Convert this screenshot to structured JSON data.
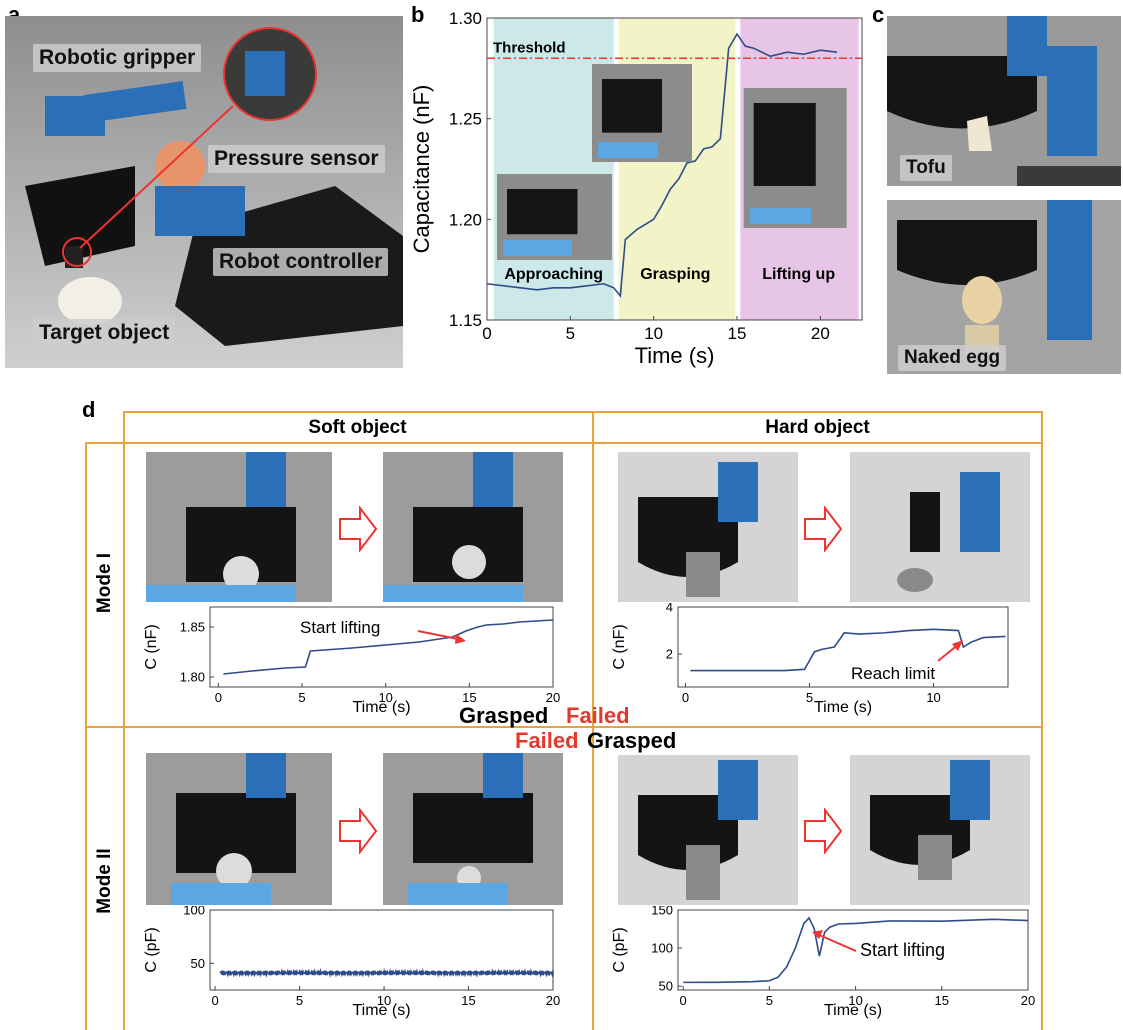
{
  "panels": {
    "a": {
      "letter": "a",
      "labels": {
        "gripper": "Robotic gripper",
        "sensor": "Pressure sensor",
        "controller": "Robot controller",
        "target": "Target object"
      }
    },
    "b": {
      "letter": "b",
      "threshold_label": "Threshold",
      "phases": [
        "Approaching",
        "Grasping",
        "Lifting up"
      ],
      "phase_colors": [
        "#cce8e8",
        "#f3f3c8",
        "#e7c5e7"
      ]
    },
    "c": {
      "letter": "c",
      "labels": {
        "tofu": "Tofu",
        "egg": "Naked egg"
      }
    },
    "d": {
      "letter": "d",
      "columns": [
        "Soft object",
        "Hard object"
      ],
      "rows": [
        "Mode I",
        "Mode II"
      ],
      "results": {
        "mode1": [
          "Grasped",
          "Failed"
        ],
        "mode2": [
          "Failed",
          "Grasped"
        ]
      },
      "annotations": {
        "start_lifting": "Start lifting",
        "reach_limit": "Reach limit"
      },
      "accent_color": "#e8a33d",
      "fail_color": "#e03a2e"
    }
  },
  "chart_data": [
    {
      "id": "b",
      "type": "line",
      "xlabel": "Time (s)",
      "ylabel": "Capacitance (nF)",
      "xlim": [
        0,
        22.5
      ],
      "ylim": [
        1.15,
        1.3
      ],
      "xticks": [
        0,
        5,
        10,
        15,
        20
      ],
      "yticks": [
        1.15,
        1.2,
        1.25,
        1.3
      ],
      "xtick_labels": [
        "0",
        "5",
        "10",
        "15",
        "20"
      ],
      "ytick_labels": [
        "1.15",
        "1.20",
        "1.25",
        "1.30"
      ],
      "threshold": 1.28,
      "color": "#2e4b8a",
      "x": [
        0,
        1,
        2,
        3,
        4,
        5,
        6,
        7,
        7.6,
        8,
        8.3,
        9,
        10,
        10.5,
        11,
        11.5,
        12,
        12.5,
        13,
        13.5,
        14,
        14.5,
        15,
        15.5,
        16,
        17,
        18,
        19,
        20,
        21
      ],
      "y": [
        1.168,
        1.167,
        1.166,
        1.165,
        1.166,
        1.166,
        1.167,
        1.168,
        1.166,
        1.162,
        1.19,
        1.195,
        1.2,
        1.207,
        1.215,
        1.22,
        1.228,
        1.229,
        1.235,
        1.236,
        1.24,
        1.285,
        1.292,
        1.286,
        1.285,
        1.281,
        1.283,
        1.282,
        1.284,
        1.283
      ]
    },
    {
      "id": "d-mode1-soft",
      "type": "line",
      "xlabel": "Time (s)",
      "ylabel": "C (nF)",
      "xlim": [
        -0.5,
        20
      ],
      "ylim": [
        1.79,
        1.87
      ],
      "xticks": [
        0,
        5,
        10,
        15,
        20
      ],
      "yticks": [
        1.8,
        1.85
      ],
      "xtick_labels": [
        "0",
        "5",
        "10",
        "15",
        "20"
      ],
      "ytick_labels": [
        "1.80",
        "1.85"
      ],
      "color": "#2e4b8a",
      "x": [
        0.3,
        2,
        4,
        5.2,
        5.5,
        8,
        10,
        12,
        14,
        14.8,
        15.5,
        16,
        17,
        18,
        19,
        20
      ],
      "y": [
        1.803,
        1.806,
        1.809,
        1.81,
        1.826,
        1.829,
        1.832,
        1.835,
        1.84,
        1.846,
        1.85,
        1.852,
        1.853,
        1.855,
        1.856,
        1.857
      ]
    },
    {
      "id": "d-mode1-hard",
      "type": "line",
      "xlabel": "Time (s)",
      "ylabel": "C (nF)",
      "xlim": [
        -0.3,
        13
      ],
      "ylim": [
        0.6,
        4
      ],
      "xticks": [
        0,
        5,
        10
      ],
      "yticks": [
        2,
        4
      ],
      "xtick_labels": [
        "0",
        "5",
        "10"
      ],
      "ytick_labels": [
        "2",
        "4"
      ],
      "color": "#2e4b8a",
      "x": [
        0.2,
        2,
        4,
        4.8,
        5.2,
        5.5,
        6,
        6.4,
        7,
        8,
        9,
        10,
        11,
        11.2,
        11.5,
        12,
        12.9
      ],
      "y": [
        1.3,
        1.3,
        1.3,
        1.35,
        2.1,
        2.2,
        2.3,
        2.9,
        2.85,
        2.9,
        3.0,
        3.05,
        3.0,
        2.3,
        2.5,
        2.7,
        2.75
      ]
    },
    {
      "id": "d-mode2-soft",
      "type": "line",
      "xlabel": "Time (s)",
      "ylabel": "C (pF)",
      "xlim": [
        -0.3,
        20
      ],
      "ylim": [
        25,
        100
      ],
      "xticks": [
        0,
        5,
        10,
        15,
        20
      ],
      "yticks": [
        50,
        100
      ],
      "xtick_labels": [
        "0",
        "5",
        "10",
        "15",
        "20"
      ],
      "ytick_labels": [
        "50",
        "100"
      ],
      "color": "#2e4b8a",
      "x": [
        0,
        20
      ],
      "y": [
        41,
        41
      ]
    },
    {
      "id": "d-mode2-hard",
      "type": "line",
      "xlabel": "Time (s)",
      "ylabel": "C (pF)",
      "xlim": [
        -0.3,
        20
      ],
      "ylim": [
        45,
        150
      ],
      "xticks": [
        0,
        5,
        10,
        15,
        20
      ],
      "yticks": [
        50,
        100,
        150
      ],
      "xtick_labels": [
        "0",
        "5",
        "10",
        "15",
        "20"
      ],
      "ytick_labels": [
        "50",
        "100",
        "150"
      ],
      "color": "#2e4b8a",
      "x": [
        0,
        2,
        4,
        5,
        5.5,
        6,
        6.5,
        7,
        7.3,
        7.6,
        7.9,
        8.2,
        8.5,
        9,
        10,
        12,
        15,
        18,
        20
      ],
      "y": [
        55,
        55,
        56,
        57,
        62,
        75,
        100,
        132,
        140,
        125,
        90,
        120,
        128,
        131,
        133,
        135,
        136,
        137,
        137
      ]
    }
  ]
}
